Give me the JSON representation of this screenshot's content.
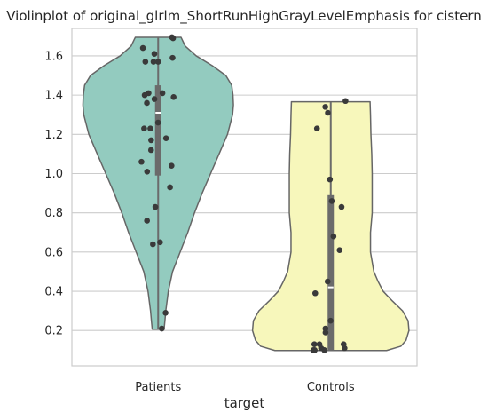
{
  "chart_data": {
    "type": "violin",
    "title": "Violinplot of original_glrlm_ShortRunHighGrayLevelEmphasis for cistern",
    "xlabel": "target",
    "ylabel": "",
    "categories": [
      "Patients",
      "Controls"
    ],
    "ylim": [
      0.02,
      1.74
    ],
    "yticks": [
      0.2,
      0.4,
      0.6,
      0.8,
      1.0,
      1.2,
      1.4,
      1.6
    ],
    "ytick_labels": [
      "0.2",
      "0.4",
      "0.6",
      "0.8",
      "1.0",
      "1.2",
      "1.4",
      "1.6"
    ],
    "grid": "horizontal",
    "colors": {
      "Patients": "#93cbbf",
      "Controls": "#f7f7bb",
      "outline": "#666666",
      "points": "#3a3a3a",
      "box": "#6b6b6b",
      "grid": "#cccccc"
    },
    "violins": [
      {
        "name": "Patients",
        "min": 0.207,
        "max": 1.695,
        "q1": 0.99,
        "median": 1.31,
        "q3": 1.45,
        "profile": [
          [
            0.207,
            0.07
          ],
          [
            0.25,
            0.08
          ],
          [
            0.3,
            0.09
          ],
          [
            0.4,
            0.12
          ],
          [
            0.5,
            0.17
          ],
          [
            0.6,
            0.26
          ],
          [
            0.7,
            0.35
          ],
          [
            0.8,
            0.43
          ],
          [
            0.9,
            0.52
          ],
          [
            1.0,
            0.62
          ],
          [
            1.1,
            0.72
          ],
          [
            1.2,
            0.82
          ],
          [
            1.3,
            0.88
          ],
          [
            1.35,
            0.89
          ],
          [
            1.4,
            0.885
          ],
          [
            1.45,
            0.87
          ],
          [
            1.5,
            0.8
          ],
          [
            1.55,
            0.64
          ],
          [
            1.6,
            0.45
          ],
          [
            1.65,
            0.32
          ],
          [
            1.695,
            0.27
          ]
        ],
        "points": [
          1.695,
          1.69,
          1.64,
          1.61,
          1.59,
          1.57,
          1.57,
          1.57,
          1.41,
          1.41,
          1.4,
          1.39,
          1.38,
          1.36,
          1.26,
          1.23,
          1.23,
          1.18,
          1.17,
          1.12,
          1.06,
          1.04,
          1.01,
          0.93,
          0.83,
          0.76,
          0.65,
          0.64,
          0.29,
          0.21
        ]
      },
      {
        "name": "Controls",
        "min": 0.098,
        "max": 1.366,
        "q1": 0.1,
        "median": 0.42,
        "q3": 0.89,
        "profile": [
          [
            0.098,
            0.66
          ],
          [
            0.12,
            0.83
          ],
          [
            0.15,
            0.89
          ],
          [
            0.2,
            0.925
          ],
          [
            0.25,
            0.915
          ],
          [
            0.3,
            0.85
          ],
          [
            0.35,
            0.73
          ],
          [
            0.4,
            0.62
          ],
          [
            0.45,
            0.56
          ],
          [
            0.5,
            0.51
          ],
          [
            0.6,
            0.47
          ],
          [
            0.7,
            0.47
          ],
          [
            0.8,
            0.49
          ],
          [
            0.9,
            0.49
          ],
          [
            1.0,
            0.49
          ],
          [
            1.1,
            0.485
          ],
          [
            1.2,
            0.475
          ],
          [
            1.3,
            0.47
          ],
          [
            1.366,
            0.465
          ]
        ],
        "points": [
          1.37,
          1.34,
          1.31,
          1.23,
          0.97,
          0.86,
          0.83,
          0.68,
          0.61,
          0.45,
          0.39,
          0.25,
          0.21,
          0.19,
          0.13,
          0.13,
          0.13,
          0.11,
          0.11,
          0.1,
          0.1,
          0.1
        ]
      }
    ]
  }
}
